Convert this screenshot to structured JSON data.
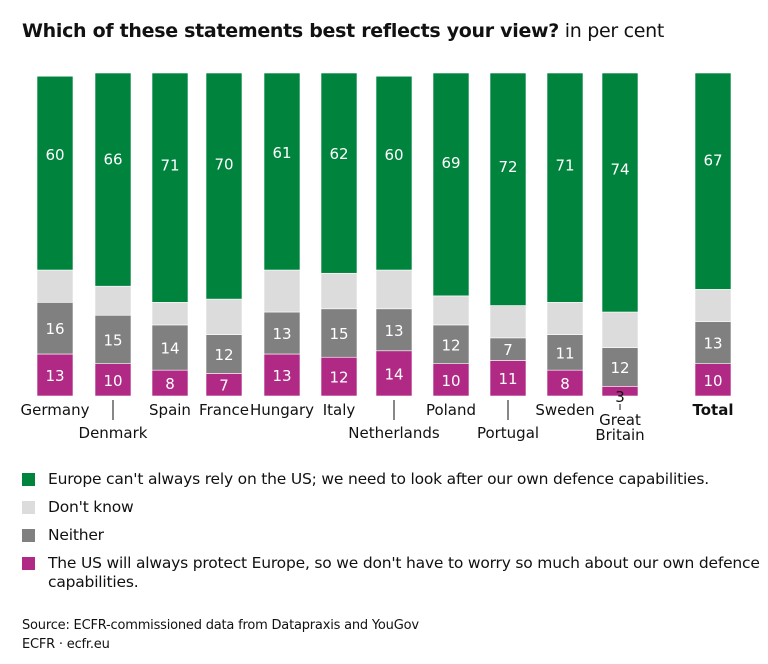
{
  "chart_data": {
    "type": "bar",
    "stacked": true,
    "title": "Which of these statements best reflects your view?",
    "subtitle": "in per cent",
    "categories": [
      "Germany",
      "Denmark",
      "Spain",
      "France",
      "Hungary",
      "Italy",
      "Netherlands",
      "Poland",
      "Portugal",
      "Sweden",
      "Great Britain",
      "Total"
    ],
    "series": [
      {
        "name": "The US will always protect Europe, so we don't have to worry so much about our own defence capabilities.",
        "color": "#b02a85",
        "values": [
          13,
          10,
          8,
          7,
          13,
          12,
          14,
          10,
          11,
          8,
          3,
          10
        ],
        "labeled": true
      },
      {
        "name": "Neither",
        "color": "#808080",
        "values": [
          16,
          15,
          14,
          12,
          13,
          15,
          13,
          12,
          7,
          11,
          12,
          13
        ],
        "labeled": true
      },
      {
        "name": "Don't know",
        "color": "#dcdcdc",
        "values": [
          10,
          9,
          7,
          11,
          13,
          11,
          12,
          9,
          10,
          10,
          11,
          10
        ],
        "labeled": false
      },
      {
        "name": "Europe can't always rely on the US; we need to look after our own defence capabilities.",
        "color": "#00843d",
        "values": [
          60,
          66,
          71,
          70,
          61,
          62,
          60,
          69,
          72,
          71,
          74,
          67
        ],
        "labeled": true
      }
    ],
    "ylim": [
      0,
      100
    ],
    "grid": false,
    "legend_position": "bottom"
  },
  "legend_order": [
    3,
    2,
    1,
    0
  ],
  "source": "Source: ECFR-commissioned data from Datapraxis and YouGov",
  "credit": "ECFR · ecfr.eu"
}
